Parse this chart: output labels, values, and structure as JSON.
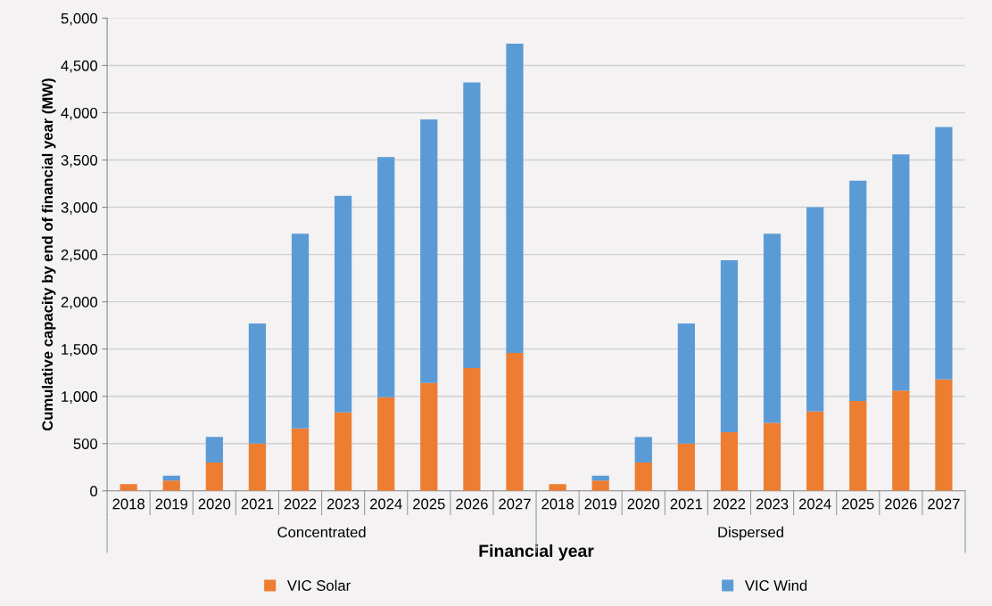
{
  "chart_data": {
    "type": "bar",
    "stacked": true,
    "xlabel": "Financial year",
    "ylabel": "Cumulative capacity by end of financial year (MW)",
    "categories": [
      "2018",
      "2019",
      "2020",
      "2021",
      "2022",
      "2023",
      "2024",
      "2025",
      "2026",
      "2027",
      "2018",
      "2019",
      "2020",
      "2021",
      "2022",
      "2023",
      "2024",
      "2025",
      "2026",
      "2027"
    ],
    "annotations": [
      "Concentrated",
      "Dispersed"
    ],
    "series": [
      {
        "name": "VIC Solar",
        "color": "#ed7d31",
        "values": [
          70,
          110,
          300,
          500,
          660,
          830,
          990,
          1140,
          1300,
          1460,
          70,
          110,
          300,
          500,
          620,
          720,
          840,
          950,
          1060,
          1180
        ]
      },
      {
        "name": "VIC Wind",
        "color": "#5b9bd5",
        "values": [
          0,
          50,
          270,
          1270,
          2060,
          2290,
          2540,
          2790,
          3020,
          3270,
          0,
          50,
          270,
          1270,
          1820,
          2000,
          2160,
          2330,
          2500,
          2670
        ]
      }
    ],
    "ylim": [
      0,
      5000
    ],
    "yticks": [
      {
        "value": 0,
        "label": "0"
      },
      {
        "value": 500,
        "label": "500"
      },
      {
        "value": 1000,
        "label": "1,000"
      },
      {
        "value": 1500,
        "label": "1,500"
      },
      {
        "value": 2000,
        "label": "2,000"
      },
      {
        "value": 2500,
        "label": "2,500"
      },
      {
        "value": 3000,
        "label": "3,000"
      },
      {
        "value": 3500,
        "label": "3,500"
      },
      {
        "value": 4000,
        "label": "4,000"
      },
      {
        "value": 4500,
        "label": "4,500"
      },
      {
        "value": 5000,
        "label": "5,000"
      }
    ],
    "grid": "y",
    "legend": "bottom"
  }
}
